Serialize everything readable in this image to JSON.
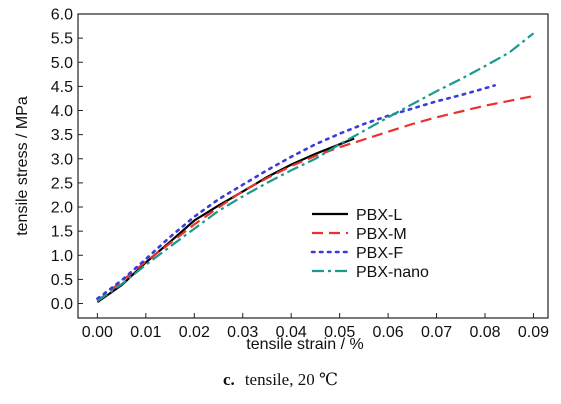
{
  "chart_data": {
    "type": "line",
    "xlabel": "tensile strain / %",
    "ylabel": "tensile stress / MPa",
    "xlim": [
      -0.004,
      0.093
    ],
    "ylim": [
      -0.3,
      6.0
    ],
    "xticks": [
      0.0,
      0.01,
      0.02,
      0.03,
      0.04,
      0.05,
      0.06,
      0.07,
      0.08,
      0.09
    ],
    "xtick_labels": [
      "0.00",
      "0.01",
      "0.02",
      "0.03",
      "0.04",
      "0.05",
      "0.06",
      "0.07",
      "0.08",
      "0.09"
    ],
    "yticks": [
      0.0,
      0.5,
      1.0,
      1.5,
      2.0,
      2.5,
      3.0,
      3.5,
      4.0,
      4.5,
      5.0,
      5.5,
      6.0
    ],
    "ytick_labels": [
      "0.0",
      "0.5",
      "1.0",
      "1.5",
      "2.0",
      "2.5",
      "3.0",
      "3.5",
      "4.0",
      "4.5",
      "5.0",
      "5.5",
      "6.0"
    ],
    "grid": false,
    "legend_position": "center-right",
    "series": [
      {
        "name": "PBX-L",
        "color": "#000000",
        "style": "solid",
        "points": [
          [
            0.0,
            0.03
          ],
          [
            0.005,
            0.38
          ],
          [
            0.01,
            0.85
          ],
          [
            0.015,
            1.28
          ],
          [
            0.02,
            1.72
          ],
          [
            0.025,
            2.03
          ],
          [
            0.03,
            2.32
          ],
          [
            0.035,
            2.62
          ],
          [
            0.04,
            2.88
          ],
          [
            0.045,
            3.1
          ],
          [
            0.05,
            3.3
          ],
          [
            0.053,
            3.42
          ]
        ]
      },
      {
        "name": "PBX-M",
        "color": "#e8322b",
        "style": "dashed",
        "points": [
          [
            0.0,
            0.05
          ],
          [
            0.005,
            0.46
          ],
          [
            0.01,
            0.87
          ],
          [
            0.015,
            1.25
          ],
          [
            0.02,
            1.64
          ],
          [
            0.025,
            1.99
          ],
          [
            0.03,
            2.33
          ],
          [
            0.035,
            2.6
          ],
          [
            0.04,
            2.85
          ],
          [
            0.045,
            3.06
          ],
          [
            0.05,
            3.24
          ],
          [
            0.055,
            3.4
          ],
          [
            0.06,
            3.56
          ],
          [
            0.065,
            3.72
          ],
          [
            0.07,
            3.86
          ],
          [
            0.075,
            3.98
          ],
          [
            0.08,
            4.1
          ],
          [
            0.085,
            4.2
          ],
          [
            0.09,
            4.3
          ]
        ]
      },
      {
        "name": "PBX-F",
        "color": "#3a3ae0",
        "style": "dotted",
        "points": [
          [
            0.0,
            0.1
          ],
          [
            0.005,
            0.48
          ],
          [
            0.01,
            0.92
          ],
          [
            0.015,
            1.38
          ],
          [
            0.02,
            1.8
          ],
          [
            0.025,
            2.16
          ],
          [
            0.03,
            2.46
          ],
          [
            0.035,
            2.76
          ],
          [
            0.04,
            3.04
          ],
          [
            0.045,
            3.3
          ],
          [
            0.05,
            3.52
          ],
          [
            0.055,
            3.72
          ],
          [
            0.06,
            3.89
          ],
          [
            0.065,
            4.04
          ],
          [
            0.07,
            4.19
          ],
          [
            0.075,
            4.32
          ],
          [
            0.08,
            4.46
          ],
          [
            0.082,
            4.52
          ]
        ]
      },
      {
        "name": "PBX-nano",
        "color": "#1a9a8c",
        "style": "dashdot",
        "points": [
          [
            0.0,
            0.05
          ],
          [
            0.005,
            0.4
          ],
          [
            0.01,
            0.8
          ],
          [
            0.015,
            1.18
          ],
          [
            0.02,
            1.55
          ],
          [
            0.025,
            1.92
          ],
          [
            0.03,
            2.22
          ],
          [
            0.035,
            2.5
          ],
          [
            0.04,
            2.76
          ],
          [
            0.045,
            3.0
          ],
          [
            0.05,
            3.3
          ],
          [
            0.055,
            3.58
          ],
          [
            0.06,
            3.86
          ],
          [
            0.065,
            4.13
          ],
          [
            0.07,
            4.4
          ],
          [
            0.075,
            4.65
          ],
          [
            0.08,
            4.92
          ],
          [
            0.085,
            5.2
          ],
          [
            0.09,
            5.6
          ]
        ]
      }
    ]
  },
  "caption": {
    "letter": "c.",
    "text": "tensile, 20 ℃"
  }
}
